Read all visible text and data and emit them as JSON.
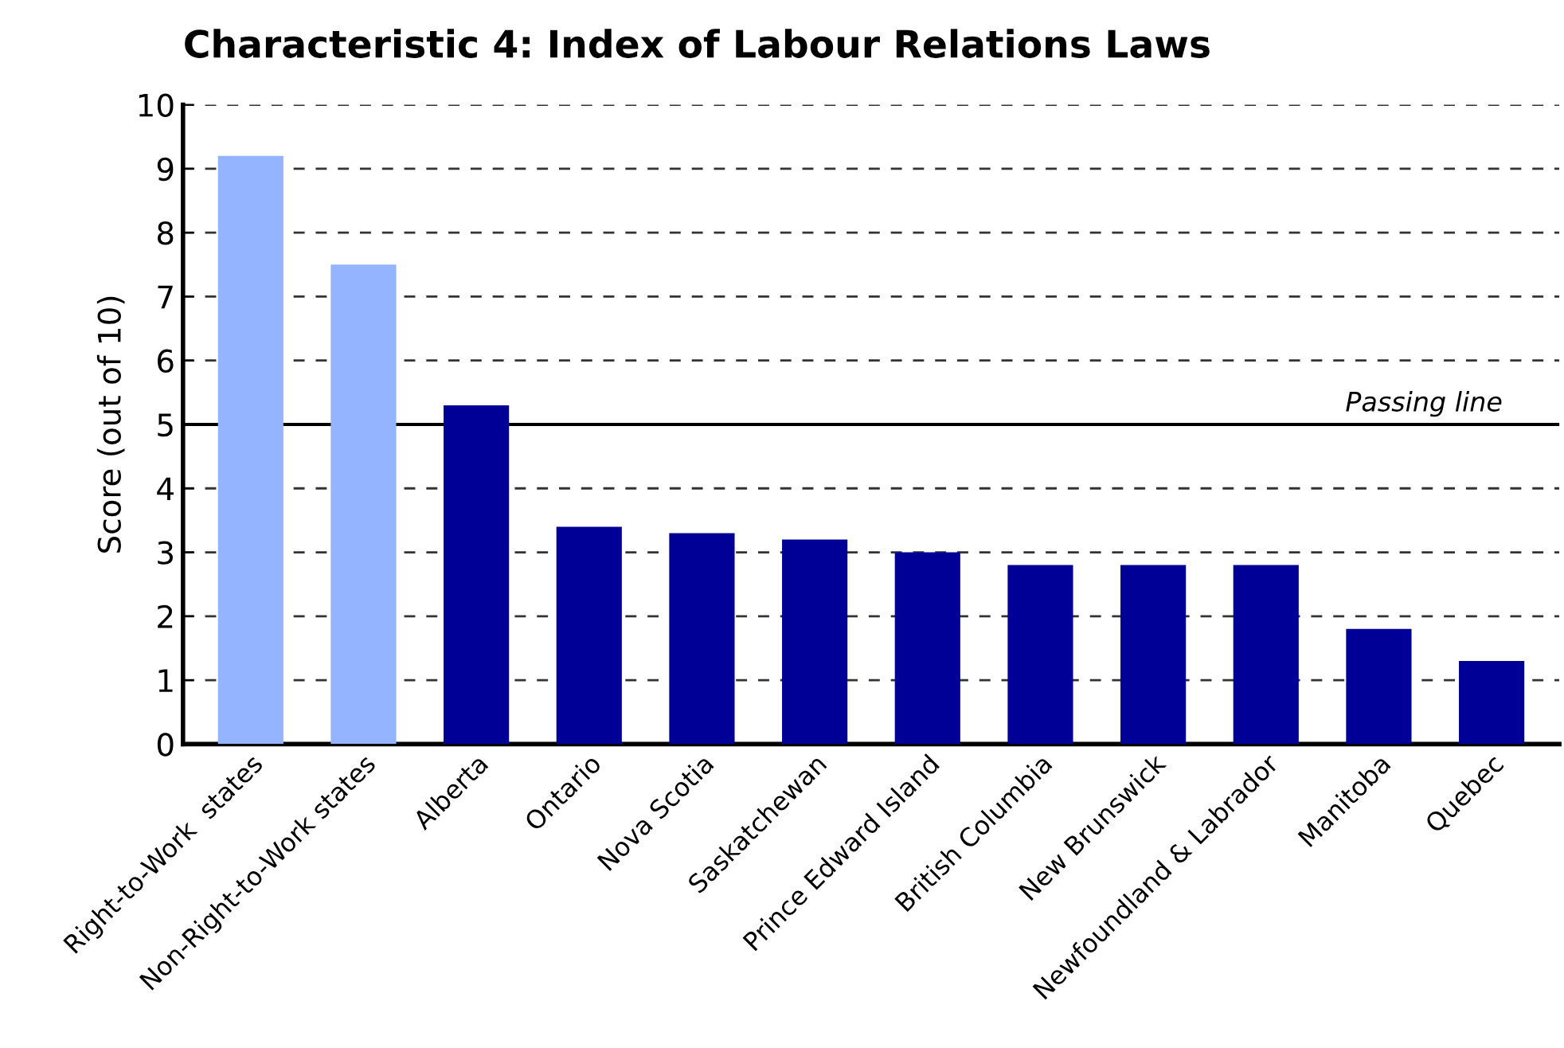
{
  "chart_data": {
    "type": "bar",
    "title": "Characteristic 4: Index of Labour Relations Laws",
    "ylabel": "Score (out of 10)",
    "categories": [
      "Right-to-Work  states",
      "Non-Right-to-Work states",
      "Alberta",
      "Ontario",
      "Nova Scotia",
      "Saskatchewan",
      "Prince Edward Island",
      "British Columbia",
      "New Brunswick",
      "Newfoundland & Labrador",
      "Manitoba",
      "Quebec"
    ],
    "values": [
      9.2,
      7.5,
      5.3,
      3.4,
      3.3,
      3.2,
      3.0,
      2.8,
      2.8,
      2.8,
      1.8,
      1.3
    ],
    "colors": [
      "#94b4ff",
      "#94b4ff",
      "#000096",
      "#000096",
      "#000096",
      "#000096",
      "#000096",
      "#000096",
      "#000096",
      "#000096",
      "#000096",
      "#000096"
    ],
    "ylim": [
      0,
      10
    ],
    "yticks": [
      0,
      1,
      2,
      3,
      4,
      5,
      6,
      7,
      8,
      9,
      10
    ],
    "grid": "y",
    "ref_lines": [
      {
        "axis": "y",
        "value": 5,
        "label": "Passing line",
        "color": "#000000",
        "line_style": "solid"
      }
    ]
  }
}
